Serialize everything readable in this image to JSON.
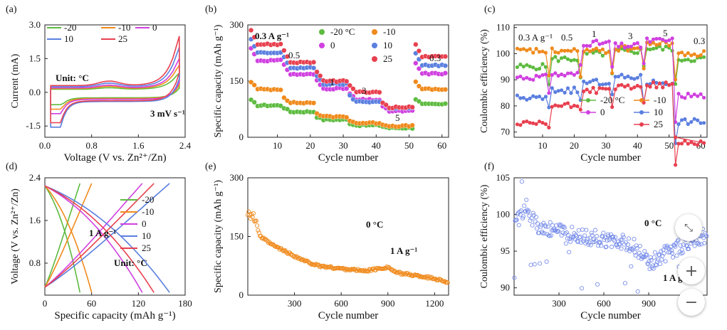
{
  "colors": {
    "n20": "#5DBB3F",
    "n10": "#F08A1C",
    "z0": "#D040E0",
    "p10": "#5B7FE0",
    "p25": "#E8404F",
    "single": "#F08A1C",
    "ce": "#7A8FEA"
  },
  "zoom_controls": {
    "collapse_icon": "⤡",
    "zoom_in": "+",
    "zoom_out": "−"
  },
  "chart_data": [
    {
      "type": "line",
      "panel_label": "(a)",
      "xlabel": "Voltage (V vs. Zn²⁺/Zn)",
      "ylabel": "Current (mA)",
      "xlim": [
        0,
        2.4
      ],
      "ylim": [
        -2.0,
        3.0
      ],
      "x_ticks": [
        "0.0",
        "0.8",
        "1.6",
        "2.4"
      ],
      "y_ticks": [
        "-1.5",
        "0.0",
        "1.5",
        "3.0"
      ],
      "legend": [
        "-20",
        "-10",
        "0",
        "10",
        "25"
      ],
      "annotations": [
        "Unit: °C",
        "3 mV s⁻¹"
      ],
      "series": [
        {
          "name": "-20",
          "color_key": "n20",
          "upper_peak": 0.85,
          "lower_min": -0.55
        },
        {
          "name": "-10",
          "color_key": "n10",
          "upper_peak": 1.2,
          "lower_min": -0.75
        },
        {
          "name": "0",
          "color_key": "z0",
          "upper_peak": 1.5,
          "lower_min": -0.95
        },
        {
          "name": "10",
          "color_key": "p10",
          "upper_peak": 2.0,
          "lower_min": -1.55
        },
        {
          "name": "25",
          "color_key": "p25",
          "upper_peak": 2.5,
          "lower_min": -1.35
        }
      ]
    },
    {
      "type": "scatter",
      "panel_label": "(b)",
      "xlabel": "Cycle number",
      "ylabel": "Specific capacity  (mAh g⁻¹)",
      "xlim": [
        1,
        62
      ],
      "ylim": [
        0,
        300
      ],
      "x_ticks": [
        "10",
        "20",
        "30",
        "40",
        "50",
        "60"
      ],
      "y_ticks": [
        "0",
        "150",
        "300"
      ],
      "legend": [
        "-20 °C",
        "-10",
        "0",
        "10",
        "25"
      ],
      "rate_labels": [
        "0.3 A g⁻¹",
        "0.5",
        "1",
        "3",
        "5",
        "0.3"
      ],
      "segments": [
        "0.3",
        "0.5",
        "1",
        "3",
        "5",
        "0.3"
      ],
      "series": [
        {
          "name": "-20 °C",
          "color_key": "n20",
          "values": [
            85,
            68,
            47,
            32,
            25,
            88
          ]
        },
        {
          "name": "-10",
          "color_key": "n10",
          "values": [
            128,
            92,
            55,
            38,
            30,
            128
          ]
        },
        {
          "name": "0",
          "color_key": "z0",
          "values": [
            205,
            168,
            130,
            100,
            70,
            170
          ]
        },
        {
          "name": "10",
          "color_key": "p10",
          "values": [
            225,
            185,
            142,
            95,
            78,
            192
          ]
        },
        {
          "name": "25",
          "color_key": "p25",
          "values": [
            248,
            200,
            150,
            120,
            80,
            215
          ]
        }
      ]
    },
    {
      "type": "line",
      "panel_label": "(c)",
      "xlabel": "Cycle number",
      "ylabel": "Coulombic efficiency (%)",
      "xlim": [
        1,
        62
      ],
      "ylim": [
        68,
        111
      ],
      "x_ticks": [
        "10",
        "20",
        "30",
        "40",
        "50",
        "60"
      ],
      "y_ticks": [
        "70",
        "80",
        "90",
        "100",
        "110"
      ],
      "legend": [
        "-20 °C",
        "-10",
        "0",
        "10",
        "25"
      ],
      "rate_labels": [
        "0.3 A g⁻¹",
        "0.5",
        "1",
        "3",
        "5",
        "0.3"
      ],
      "series": [
        {
          "name": "-20 °C",
          "color_key": "n20",
          "level": [
            95,
            98,
            100,
            101,
            102,
            98
          ]
        },
        {
          "name": "-10",
          "color_key": "n10",
          "level": [
            101,
            101,
            101,
            102,
            104,
            100
          ]
        },
        {
          "name": "0",
          "color_key": "z0",
          "level": [
            91,
            92,
            104,
            103,
            105,
            84
          ]
        },
        {
          "name": "10",
          "color_key": "p10",
          "level": [
            83,
            86,
            89,
            91,
            89,
            74
          ]
        },
        {
          "name": "25",
          "color_key": "p25",
          "level": [
            73,
            80,
            86,
            87,
            88,
            66
          ]
        }
      ]
    },
    {
      "type": "line",
      "panel_label": "(d)",
      "xlabel": "Specific capacity (mAh g⁻¹)",
      "ylabel": "Voltage (V vs. Zn²⁺/Zn)",
      "xlim": [
        0,
        180
      ],
      "ylim": [
        0.2,
        2.4
      ],
      "x_ticks": [
        "0",
        "60",
        "120",
        "180"
      ],
      "y_ticks": [
        "0.8",
        "1.6",
        "2.4"
      ],
      "legend": [
        "-20",
        "-10",
        "0",
        "10",
        "25"
      ],
      "annotations": [
        "1 A g⁻¹",
        "Unit: °C"
      ],
      "series": [
        {
          "name": "-20",
          "color_key": "n20",
          "capacity": 45
        },
        {
          "name": "-10",
          "color_key": "n10",
          "capacity": 60
        },
        {
          "name": "0",
          "color_key": "z0",
          "capacity": 125
        },
        {
          "name": "10",
          "color_key": "p10",
          "capacity": 160
        },
        {
          "name": "25",
          "color_key": "p25",
          "capacity": 140
        }
      ]
    },
    {
      "type": "scatter",
      "panel_label": "(e)",
      "xlabel": "Cycle number",
      "ylabel": "Specific capacity (mAh g⁻¹)",
      "xlim": [
        0,
        1290
      ],
      "ylim": [
        0,
        300
      ],
      "x_ticks": [
        "300",
        "600",
        "900",
        "1200"
      ],
      "y_ticks": [
        "0",
        "150",
        "300"
      ],
      "annotations": [
        "0 °C",
        "1 A g⁻¹"
      ],
      "x": [
        5,
        40,
        80,
        150,
        250,
        350,
        450,
        550,
        650,
        750,
        850,
        900,
        950,
        1050,
        1150,
        1250,
        1280
      ],
      "values": [
        215,
        200,
        150,
        130,
        110,
        90,
        75,
        70,
        66,
        62,
        68,
        72,
        58,
        52,
        46,
        38,
        33
      ]
    },
    {
      "type": "scatter",
      "panel_label": "(f)",
      "xlabel": "Cycle number",
      "ylabel": "Coulombic efficiency (%)",
      "xlim": [
        0,
        1290
      ],
      "ylim": [
        89,
        105
      ],
      "x_ticks": [
        "300",
        "600",
        "900"
      ],
      "y_ticks": [
        "90",
        "95",
        "100",
        "105"
      ],
      "annotations": [
        "0 °C",
        "1 A g"
      ],
      "x": [
        10,
        80,
        150,
        250,
        350,
        450,
        550,
        650,
        750,
        850,
        900,
        950,
        1050,
        1150,
        1250
      ],
      "values": [
        99,
        101,
        98.5,
        98,
        97.5,
        97,
        96.8,
        96.5,
        96.2,
        95,
        93,
        94,
        95,
        96,
        97
      ]
    }
  ]
}
